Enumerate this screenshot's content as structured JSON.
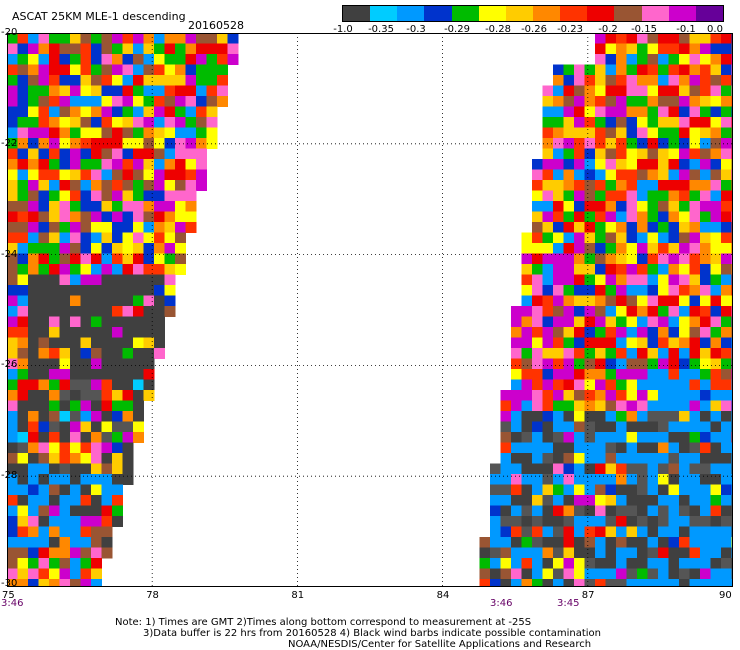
{
  "header": {
    "title": "ASCAT 25KM MLE-1 descending",
    "date": "20160528"
  },
  "colorbar": {
    "colors": [
      "#404040",
      "#00ccff",
      "#0099ff",
      "#0033cc",
      "#00bb00",
      "#ffff00",
      "#ffcc00",
      "#ff8800",
      "#ff3300",
      "#ee0000",
      "#995533",
      "#ff66cc",
      "#cc00cc",
      "#660099"
    ],
    "labels": [
      "-1.0",
      "-0.35",
      "-0.3",
      "-0.29",
      "-0.28",
      "-0.26",
      "-0.23",
      "-0.2",
      "-0.15",
      "-0.1",
      "0.0"
    ]
  },
  "axes": {
    "lon_labels": [
      "75",
      "78",
      "81",
      "84",
      "87",
      "90"
    ],
    "lat_labels": [
      "-20",
      "-22",
      "-24",
      "-26",
      "-28",
      "-30"
    ]
  },
  "map_data": {
    "lon_range": [
      75,
      90
    ],
    "lat_range": [
      -30,
      -20
    ],
    "swaths": [
      {
        "name": "west",
        "left_edge_lon": [
          75,
          75
        ],
        "right_edge_lon": [
          79.7,
          76.8
        ],
        "time": "3:46"
      },
      {
        "name": "east",
        "left_edge_lon": [
          86.2,
          84.6
        ],
        "right_edge_lon": [
          90,
          90
        ],
        "times": [
          "3:46",
          "3:45"
        ]
      }
    ]
  },
  "times": {
    "left": "3:46",
    "mid1": "3:46",
    "mid2": "3:45"
  },
  "notes": {
    "line1": "Note: 1) Times are GMT 2)Times along bottom correspond to measurement at -25S",
    "line2": "3)Data buffer is 22 hrs from 20160528 4) Black wind barbs indicate possible contamination",
    "line3": "NOAA/NESDIS/Center for Satellite Applications and Research"
  }
}
